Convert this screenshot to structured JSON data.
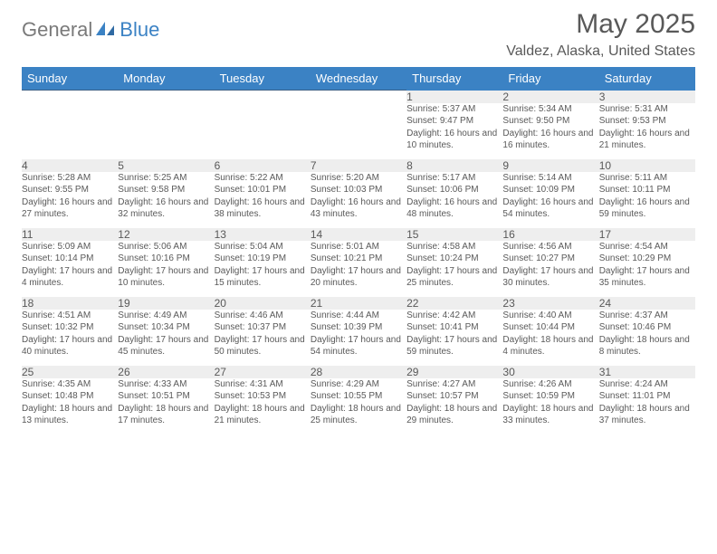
{
  "logo": {
    "general": "General",
    "blue": "Blue"
  },
  "title": "May 2025",
  "location": "Valdez, Alaska, United States",
  "colors": {
    "header_bg": "#3b82c4",
    "header_text": "#ffffff",
    "daynum_bg": "#eeeeee",
    "text": "#595959",
    "rule": "#3b5f85",
    "page_bg": "#ffffff"
  },
  "fonts": {
    "title_pt": 30,
    "location_pt": 16,
    "dayhead_pt": 13,
    "daynum_pt": 12,
    "detail_pt": 10
  },
  "dayHeaders": [
    "Sunday",
    "Monday",
    "Tuesday",
    "Wednesday",
    "Thursday",
    "Friday",
    "Saturday"
  ],
  "weeks": [
    [
      null,
      null,
      null,
      null,
      {
        "n": "1",
        "sr": "Sunrise: 5:37 AM",
        "ss": "Sunset: 9:47 PM",
        "dl": "Daylight: 16 hours and 10 minutes."
      },
      {
        "n": "2",
        "sr": "Sunrise: 5:34 AM",
        "ss": "Sunset: 9:50 PM",
        "dl": "Daylight: 16 hours and 16 minutes."
      },
      {
        "n": "3",
        "sr": "Sunrise: 5:31 AM",
        "ss": "Sunset: 9:53 PM",
        "dl": "Daylight: 16 hours and 21 minutes."
      }
    ],
    [
      {
        "n": "4",
        "sr": "Sunrise: 5:28 AM",
        "ss": "Sunset: 9:55 PM",
        "dl": "Daylight: 16 hours and 27 minutes."
      },
      {
        "n": "5",
        "sr": "Sunrise: 5:25 AM",
        "ss": "Sunset: 9:58 PM",
        "dl": "Daylight: 16 hours and 32 minutes."
      },
      {
        "n": "6",
        "sr": "Sunrise: 5:22 AM",
        "ss": "Sunset: 10:01 PM",
        "dl": "Daylight: 16 hours and 38 minutes."
      },
      {
        "n": "7",
        "sr": "Sunrise: 5:20 AM",
        "ss": "Sunset: 10:03 PM",
        "dl": "Daylight: 16 hours and 43 minutes."
      },
      {
        "n": "8",
        "sr": "Sunrise: 5:17 AM",
        "ss": "Sunset: 10:06 PM",
        "dl": "Daylight: 16 hours and 48 minutes."
      },
      {
        "n": "9",
        "sr": "Sunrise: 5:14 AM",
        "ss": "Sunset: 10:09 PM",
        "dl": "Daylight: 16 hours and 54 minutes."
      },
      {
        "n": "10",
        "sr": "Sunrise: 5:11 AM",
        "ss": "Sunset: 10:11 PM",
        "dl": "Daylight: 16 hours and 59 minutes."
      }
    ],
    [
      {
        "n": "11",
        "sr": "Sunrise: 5:09 AM",
        "ss": "Sunset: 10:14 PM",
        "dl": "Daylight: 17 hours and 4 minutes."
      },
      {
        "n": "12",
        "sr": "Sunrise: 5:06 AM",
        "ss": "Sunset: 10:16 PM",
        "dl": "Daylight: 17 hours and 10 minutes."
      },
      {
        "n": "13",
        "sr": "Sunrise: 5:04 AM",
        "ss": "Sunset: 10:19 PM",
        "dl": "Daylight: 17 hours and 15 minutes."
      },
      {
        "n": "14",
        "sr": "Sunrise: 5:01 AM",
        "ss": "Sunset: 10:21 PM",
        "dl": "Daylight: 17 hours and 20 minutes."
      },
      {
        "n": "15",
        "sr": "Sunrise: 4:58 AM",
        "ss": "Sunset: 10:24 PM",
        "dl": "Daylight: 17 hours and 25 minutes."
      },
      {
        "n": "16",
        "sr": "Sunrise: 4:56 AM",
        "ss": "Sunset: 10:27 PM",
        "dl": "Daylight: 17 hours and 30 minutes."
      },
      {
        "n": "17",
        "sr": "Sunrise: 4:54 AM",
        "ss": "Sunset: 10:29 PM",
        "dl": "Daylight: 17 hours and 35 minutes."
      }
    ],
    [
      {
        "n": "18",
        "sr": "Sunrise: 4:51 AM",
        "ss": "Sunset: 10:32 PM",
        "dl": "Daylight: 17 hours and 40 minutes."
      },
      {
        "n": "19",
        "sr": "Sunrise: 4:49 AM",
        "ss": "Sunset: 10:34 PM",
        "dl": "Daylight: 17 hours and 45 minutes."
      },
      {
        "n": "20",
        "sr": "Sunrise: 4:46 AM",
        "ss": "Sunset: 10:37 PM",
        "dl": "Daylight: 17 hours and 50 minutes."
      },
      {
        "n": "21",
        "sr": "Sunrise: 4:44 AM",
        "ss": "Sunset: 10:39 PM",
        "dl": "Daylight: 17 hours and 54 minutes."
      },
      {
        "n": "22",
        "sr": "Sunrise: 4:42 AM",
        "ss": "Sunset: 10:41 PM",
        "dl": "Daylight: 17 hours and 59 minutes."
      },
      {
        "n": "23",
        "sr": "Sunrise: 4:40 AM",
        "ss": "Sunset: 10:44 PM",
        "dl": "Daylight: 18 hours and 4 minutes."
      },
      {
        "n": "24",
        "sr": "Sunrise: 4:37 AM",
        "ss": "Sunset: 10:46 PM",
        "dl": "Daylight: 18 hours and 8 minutes."
      }
    ],
    [
      {
        "n": "25",
        "sr": "Sunrise: 4:35 AM",
        "ss": "Sunset: 10:48 PM",
        "dl": "Daylight: 18 hours and 13 minutes."
      },
      {
        "n": "26",
        "sr": "Sunrise: 4:33 AM",
        "ss": "Sunset: 10:51 PM",
        "dl": "Daylight: 18 hours and 17 minutes."
      },
      {
        "n": "27",
        "sr": "Sunrise: 4:31 AM",
        "ss": "Sunset: 10:53 PM",
        "dl": "Daylight: 18 hours and 21 minutes."
      },
      {
        "n": "28",
        "sr": "Sunrise: 4:29 AM",
        "ss": "Sunset: 10:55 PM",
        "dl": "Daylight: 18 hours and 25 minutes."
      },
      {
        "n": "29",
        "sr": "Sunrise: 4:27 AM",
        "ss": "Sunset: 10:57 PM",
        "dl": "Daylight: 18 hours and 29 minutes."
      },
      {
        "n": "30",
        "sr": "Sunrise: 4:26 AM",
        "ss": "Sunset: 10:59 PM",
        "dl": "Daylight: 18 hours and 33 minutes."
      },
      {
        "n": "31",
        "sr": "Sunrise: 4:24 AM",
        "ss": "Sunset: 11:01 PM",
        "dl": "Daylight: 18 hours and 37 minutes."
      }
    ]
  ]
}
